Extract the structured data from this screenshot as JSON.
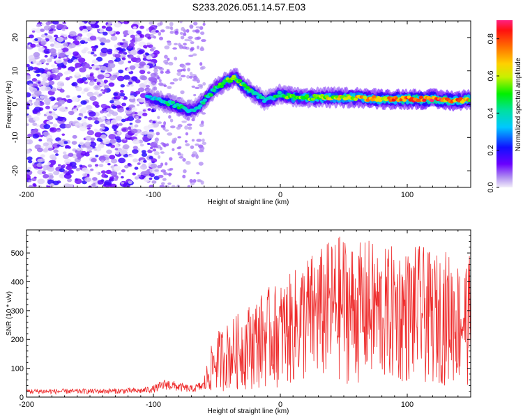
{
  "title": "S233.2026.051.14.57.E03",
  "chart_data": [
    {
      "type": "heatmap",
      "name": "spectrogram",
      "xlabel": "Height of straight line (km)",
      "ylabel": "Frequency (Hz)",
      "xlim": [
        -200,
        150
      ],
      "ylim": [
        -25,
        25
      ],
      "xticks": [
        -200,
        -100,
        0,
        100
      ],
      "xtick_labels": [
        "-200",
        "-100",
        "0",
        "100"
      ],
      "yticks": [
        20,
        10,
        0,
        -10,
        -20
      ],
      "ytick_labels": [
        "20",
        "10",
        "0",
        "-10",
        "-20"
      ],
      "colorbar": {
        "label": "Normalized spectral amplitude",
        "range": [
          0.0,
          0.9
        ],
        "ticks": [
          0.0,
          0.2,
          0.4,
          0.6,
          0.8
        ],
        "tick_labels": [
          "0.0",
          "0.2",
          "0.4",
          "0.6",
          "0.8"
        ]
      },
      "ridge": {
        "x": [
          -105,
          -95,
          -85,
          -78,
          -72,
          -65,
          -58,
          -50,
          -42,
          -35,
          -28,
          -20,
          -12,
          -5,
          0,
          10,
          20,
          40,
          60,
          80,
          100,
          120,
          140,
          150
        ],
        "y": [
          2,
          1,
          0,
          -1,
          -2,
          -1,
          2,
          5,
          7,
          8,
          5,
          3,
          1,
          2,
          3,
          2,
          2,
          2,
          2,
          1.5,
          1.5,
          1.5,
          1,
          1.5
        ],
        "amplitude": [
          0.35,
          0.4,
          0.45,
          0.45,
          0.4,
          0.4,
          0.45,
          0.5,
          0.55,
          0.6,
          0.55,
          0.45,
          0.4,
          0.45,
          0.5,
          0.55,
          0.6,
          0.65,
          0.7,
          0.75,
          0.8,
          0.85,
          0.8,
          0.7
        ]
      },
      "noise_region_x": [
        -200,
        -105
      ]
    },
    {
      "type": "line",
      "name": "snr",
      "xlabel": "Height of straight line (km)",
      "ylabel": "SNR (10 * v/v)",
      "xlim": [
        -200,
        150
      ],
      "ylim": [
        0,
        580
      ],
      "xticks": [
        -200,
        -100,
        0,
        100
      ],
      "xtick_labels": [
        "-200",
        "-100",
        "0",
        "100"
      ],
      "yticks": [
        0,
        100,
        200,
        300,
        400,
        500
      ],
      "ytick_labels": [
        "0",
        "100",
        "200",
        "300",
        "400",
        "500"
      ],
      "line_color": "#ee2a2a",
      "envelope": {
        "x": [
          -200,
          -150,
          -110,
          -100,
          -90,
          -80,
          -70,
          -60,
          -55,
          -50,
          -40,
          -30,
          -20,
          -10,
          0,
          10,
          20,
          30,
          40,
          50,
          60,
          70,
          80,
          90,
          100,
          110,
          120,
          130,
          140,
          150
        ],
        "y": [
          20,
          20,
          22,
          28,
          45,
          35,
          28,
          40,
          90,
          120,
          140,
          160,
          180,
          200,
          210,
          230,
          260,
          270,
          290,
          300,
          280,
          290,
          270,
          280,
          270,
          280,
          260,
          270,
          250,
          260
        ]
      }
    }
  ]
}
